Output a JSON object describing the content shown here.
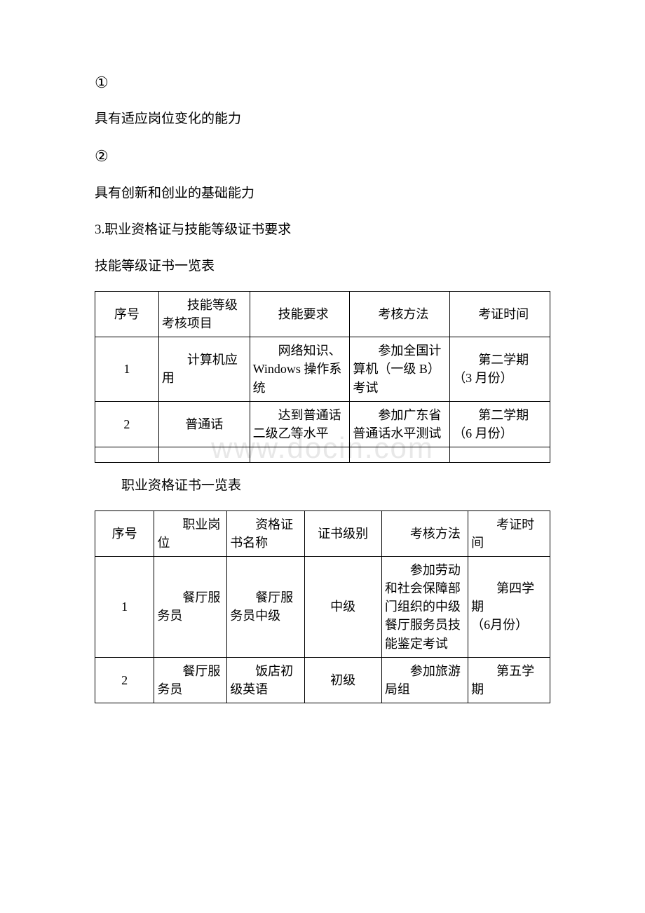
{
  "marker1": "①",
  "text1": "具有适应岗位变化的能力",
  "marker2": "②",
  "text2": "具有创新和创业的基础能力",
  "heading3": "3.职业资格证与技能等级证书要求",
  "table1_caption": "技能等级证书一览表",
  "table2_caption": "职业资格证书一览表",
  "watermark": "www.docin.com",
  "table1": {
    "columns": [
      "序号",
      "技能等级考核项目",
      "技能要求",
      "考核方法",
      "考证时间"
    ],
    "col_widths": [
      "14%",
      "20%",
      "22%",
      "22%",
      "22%"
    ],
    "rows": [
      [
        "1",
        "计算机应用",
        "网络知识、Windows 操作系统",
        "参加全国计算机（一级 B）考试",
        "第二学期\n（3 月份）"
      ],
      [
        "2",
        "普通话",
        "达到普通话二级乙等水平",
        "参加广东省普通话水平测试",
        "第二学期\n（6 月份）"
      ]
    ],
    "border_color": "#000000",
    "font_size": 18
  },
  "table2": {
    "columns": [
      "序号",
      "职业岗位",
      "资格证书名称",
      "证书级别",
      "考核方法",
      "考证时间"
    ],
    "col_widths": [
      "13%",
      "16%",
      "17%",
      "17%",
      "19%",
      "18%"
    ],
    "rows": [
      [
        "1",
        "餐厅服务员",
        "餐厅服务员中级",
        "中级",
        "参加劳动和社会保障部门组织的中级餐厅服务员技能鉴定考试",
        "第四学期\n（6月份）"
      ],
      [
        "2",
        "餐厅服务员",
        "饭店初级英语",
        "初级",
        "参加旅游局组",
        "第五学期"
      ]
    ],
    "border_color": "#000000",
    "font_size": 18
  }
}
